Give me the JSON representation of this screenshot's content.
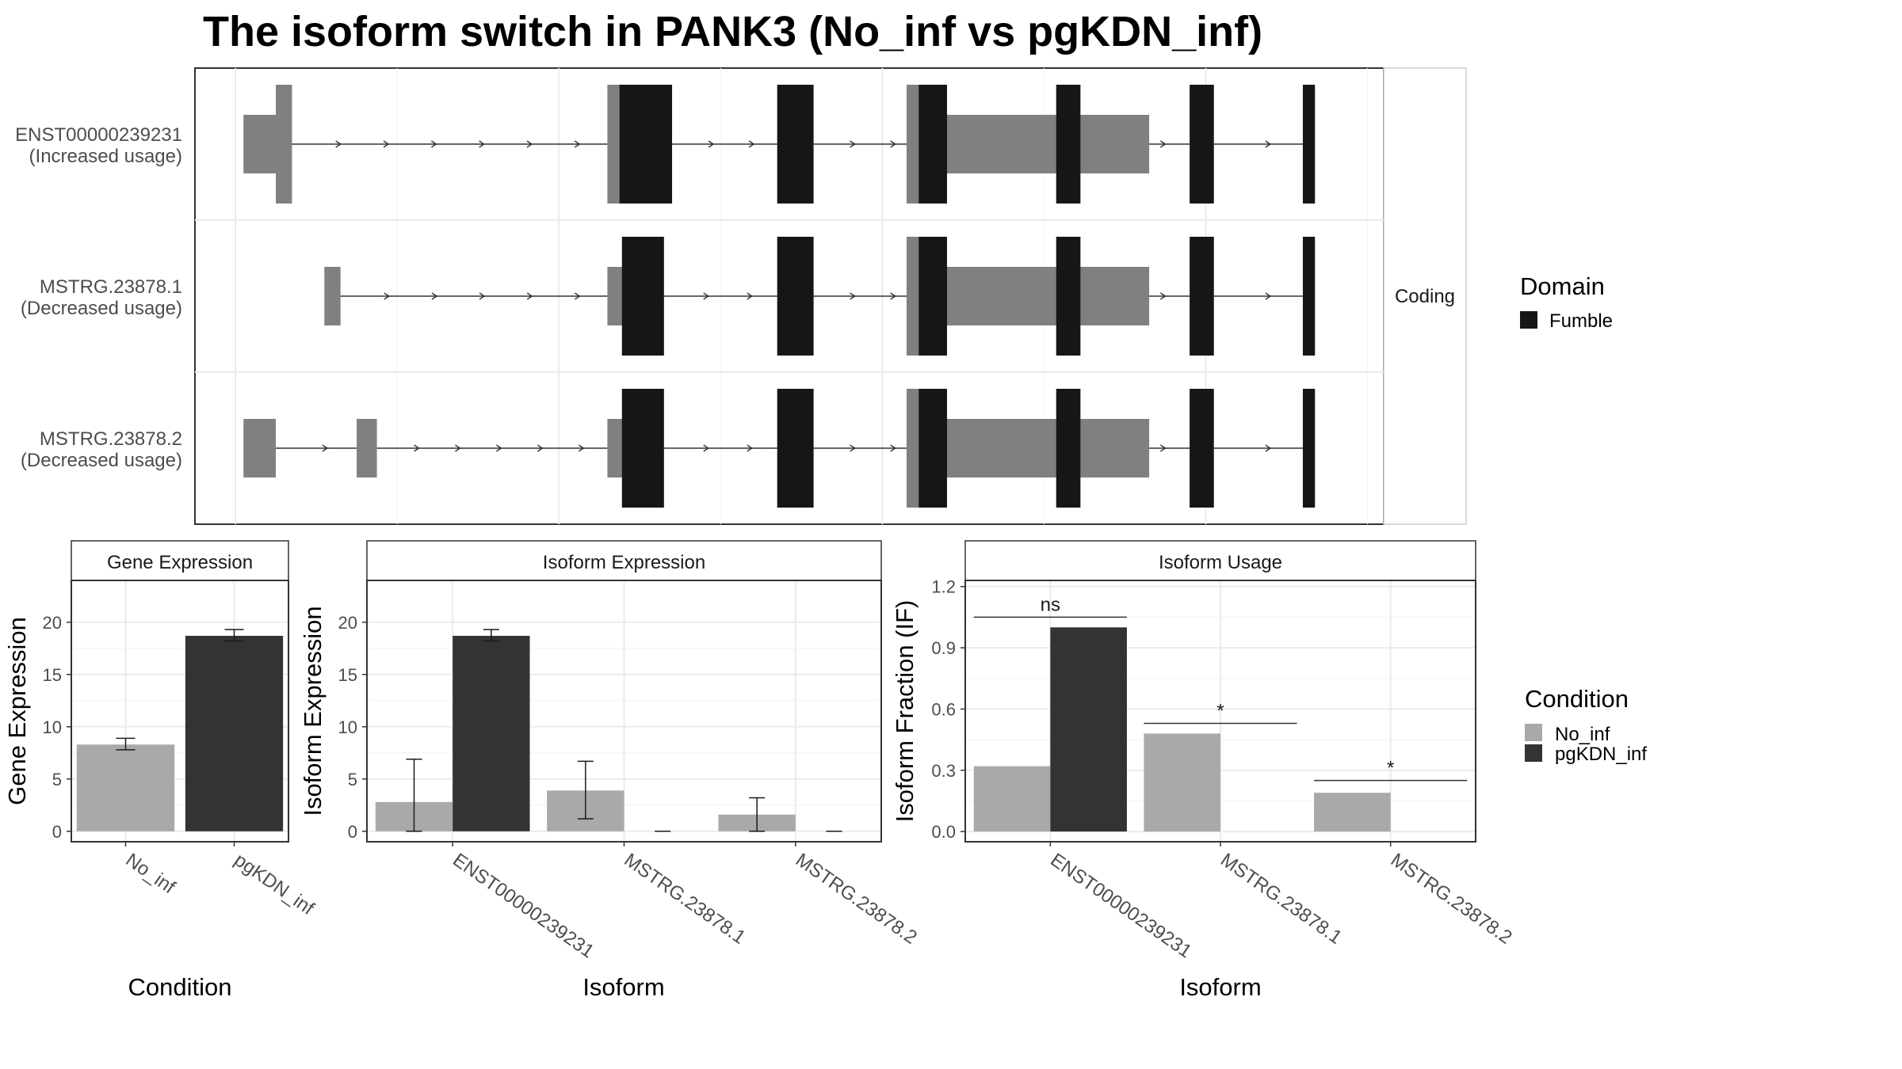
{
  "title": "The isoform switch in PANK3 (No_inf vs pgKDN_inf)",
  "colors": {
    "no_inf": "#a9a9a9",
    "pgkdn_inf": "#333333",
    "utr": "#808080",
    "domain": "#161616",
    "grid": "#ebebeb",
    "border": "#333333"
  },
  "transcript_panel": {
    "strip_label": "Coding",
    "rows": [
      {
        "name": "ENST00000239231",
        "usage": "(Increased usage)",
        "utr_blocks": [
          [
            1,
            5,
            "thin"
          ],
          [
            5,
            7,
            "tall"
          ],
          [
            46,
            48,
            "tall"
          ],
          [
            83,
            85,
            "tall"
          ],
          [
            85,
            113,
            "thick"
          ]
        ],
        "domain_blocks": [
          [
            47.5,
            54
          ],
          [
            67,
            71.5
          ],
          [
            84.5,
            88
          ],
          [
            101.5,
            104.5
          ],
          [
            118,
            121
          ],
          [
            132,
            133.5
          ]
        ],
        "introns": [
          [
            7,
            46
          ],
          [
            54,
            67
          ],
          [
            71.5,
            84.5
          ],
          [
            88,
            101.5
          ],
          [
            104.5,
            118
          ],
          [
            121,
            132
          ],
          [
            133.5,
            133.5
          ]
        ]
      },
      {
        "name": "MSTRG.23878.1",
        "usage": "(Decreased usage)",
        "utr_blocks": [
          [
            11,
            13,
            "thick"
          ],
          [
            46,
            48,
            "thick"
          ],
          [
            83,
            85,
            "tall"
          ],
          [
            85,
            113,
            "thick"
          ]
        ],
        "domain_blocks": [
          [
            47.8,
            53
          ],
          [
            67,
            71.5
          ],
          [
            84.5,
            88
          ],
          [
            101.5,
            104.5
          ],
          [
            118,
            121
          ],
          [
            132,
            133.5
          ]
        ],
        "introns": [
          [
            13,
            46
          ],
          [
            53,
            67
          ],
          [
            71.5,
            84.5
          ],
          [
            88,
            101.5
          ],
          [
            104.5,
            118
          ],
          [
            121,
            132
          ]
        ]
      },
      {
        "name": "MSTRG.23878.2",
        "usage": "(Decreased usage)",
        "utr_blocks": [
          [
            1,
            5,
            "thick"
          ],
          [
            15,
            17.5,
            "thick"
          ],
          [
            46,
            48,
            "thick"
          ],
          [
            83,
            85,
            "tall"
          ],
          [
            85,
            113,
            "thick"
          ]
        ],
        "domain_blocks": [
          [
            47.8,
            53
          ],
          [
            67,
            71.5
          ],
          [
            84.5,
            88
          ],
          [
            101.5,
            104.5
          ],
          [
            118,
            121
          ],
          [
            132,
            133.5
          ]
        ],
        "introns": [
          [
            5,
            15
          ],
          [
            17.5,
            46
          ],
          [
            53,
            67
          ],
          [
            71.5,
            84.5
          ],
          [
            88,
            101.5
          ],
          [
            104.5,
            118
          ],
          [
            121,
            132
          ]
        ]
      }
    ]
  },
  "domain_legend": {
    "title": "Domain",
    "items": [
      "Fumble"
    ]
  },
  "condition_legend": {
    "title": "Condition",
    "items": [
      "No_inf",
      "pgKDN_inf"
    ]
  },
  "chart_data": [
    {
      "type": "bar",
      "title": "Gene Expression",
      "xlabel": "Condition",
      "ylabel": "Gene Expression",
      "categories": [
        "No_inf",
        "pgKDN_inf"
      ],
      "values": [
        8.3,
        18.7
      ],
      "errors": [
        [
          7.8,
          8.9
        ],
        [
          18.2,
          19.3
        ]
      ],
      "yticks": [
        0,
        5,
        10,
        15,
        20
      ],
      "ylim": [
        -1,
        24
      ]
    },
    {
      "type": "bar",
      "title": "Isoform Expression",
      "xlabel": "Isoform",
      "ylabel": "Isoform Expression",
      "categories": [
        "ENST00000239231",
        "MSTRG.23878.1",
        "MSTRG.23878.2"
      ],
      "series": [
        {
          "name": "No_inf",
          "values": [
            2.8,
            3.9,
            1.6
          ],
          "errors": [
            [
              0,
              6.9
            ],
            [
              1.2,
              6.7
            ],
            [
              0,
              3.2
            ]
          ]
        },
        {
          "name": "pgKDN_inf",
          "values": [
            18.7,
            0,
            0
          ],
          "errors": [
            [
              18.2,
              19.3
            ],
            [
              0,
              0
            ],
            [
              0,
              0
            ]
          ]
        }
      ],
      "yticks": [
        0,
        5,
        10,
        15,
        20
      ],
      "ylim": [
        -1,
        24
      ]
    },
    {
      "type": "bar",
      "title": "Isoform Usage",
      "xlabel": "Isoform",
      "ylabel": "Isoform Fraction (IF)",
      "categories": [
        "ENST00000239231",
        "MSTRG.23878.1",
        "MSTRG.23878.2"
      ],
      "series": [
        {
          "name": "No_inf",
          "values": [
            0.32,
            0.48,
            0.19
          ]
        },
        {
          "name": "pgKDN_inf",
          "values": [
            1.0,
            0.0,
            0.0
          ]
        }
      ],
      "significance": [
        {
          "label": "ns",
          "y": 1.05,
          "span": "both"
        },
        {
          "label": "*",
          "y": 0.53,
          "span": "both"
        },
        {
          "label": "*",
          "y": 0.25,
          "span": "both"
        }
      ],
      "yticks": [
        0.0,
        0.3,
        0.6,
        0.9,
        1.2
      ],
      "ytick_labels": [
        "0.0",
        "0.3",
        "0.6",
        "0.9",
        "1.2"
      ],
      "ylim": [
        -0.05,
        1.23
      ]
    }
  ]
}
